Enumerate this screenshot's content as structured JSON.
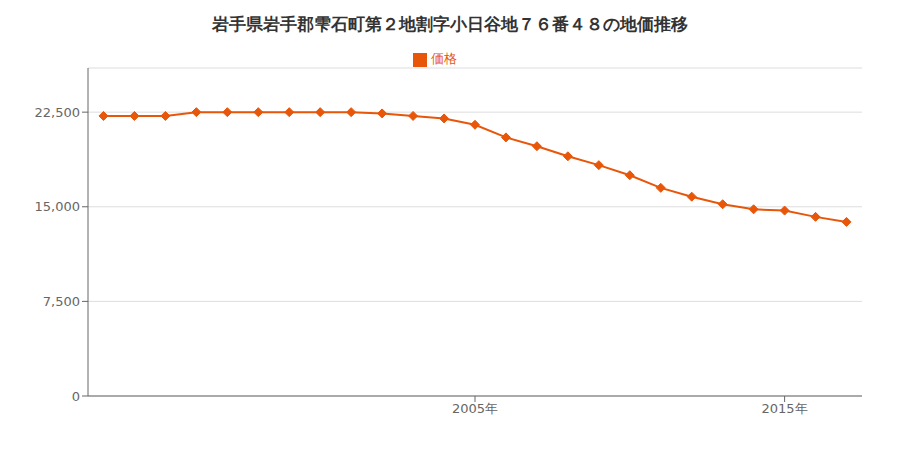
{
  "chart_data": {
    "type": "line",
    "title": "岩手県岩手郡雫石町第２地割字小日谷地７６番４８の地価推移",
    "x": [
      1993,
      1994,
      1995,
      1996,
      1997,
      1998,
      1999,
      2000,
      2001,
      2002,
      2003,
      2004,
      2005,
      2006,
      2007,
      2008,
      2009,
      2010,
      2011,
      2012,
      2013,
      2014,
      2015,
      2016,
      2017
    ],
    "series": [
      {
        "name": "価格",
        "color": "#e8560a",
        "marker": "diamond",
        "values": [
          22200,
          22200,
          22200,
          22500,
          22500,
          22500,
          22500,
          22500,
          22500,
          22400,
          22200,
          22000,
          21500,
          20500,
          19800,
          19000,
          18300,
          17500,
          16500,
          15800,
          15200,
          14800,
          14700,
          14200,
          13800
        ]
      }
    ],
    "xlim": [
      1992.5,
      2017.5
    ],
    "xticks": [
      {
        "value": 2005,
        "label": "2005年"
      },
      {
        "value": 2015,
        "label": "2015年"
      }
    ],
    "ylim": [
      0,
      26000
    ],
    "yticks": [
      0,
      {
        "value": 7500,
        "label": "7,500"
      },
      {
        "value": 15000,
        "label": "15,000"
      },
      {
        "value": 22500,
        "label": "22,500"
      }
    ],
    "grid": "y",
    "legend": "top"
  }
}
